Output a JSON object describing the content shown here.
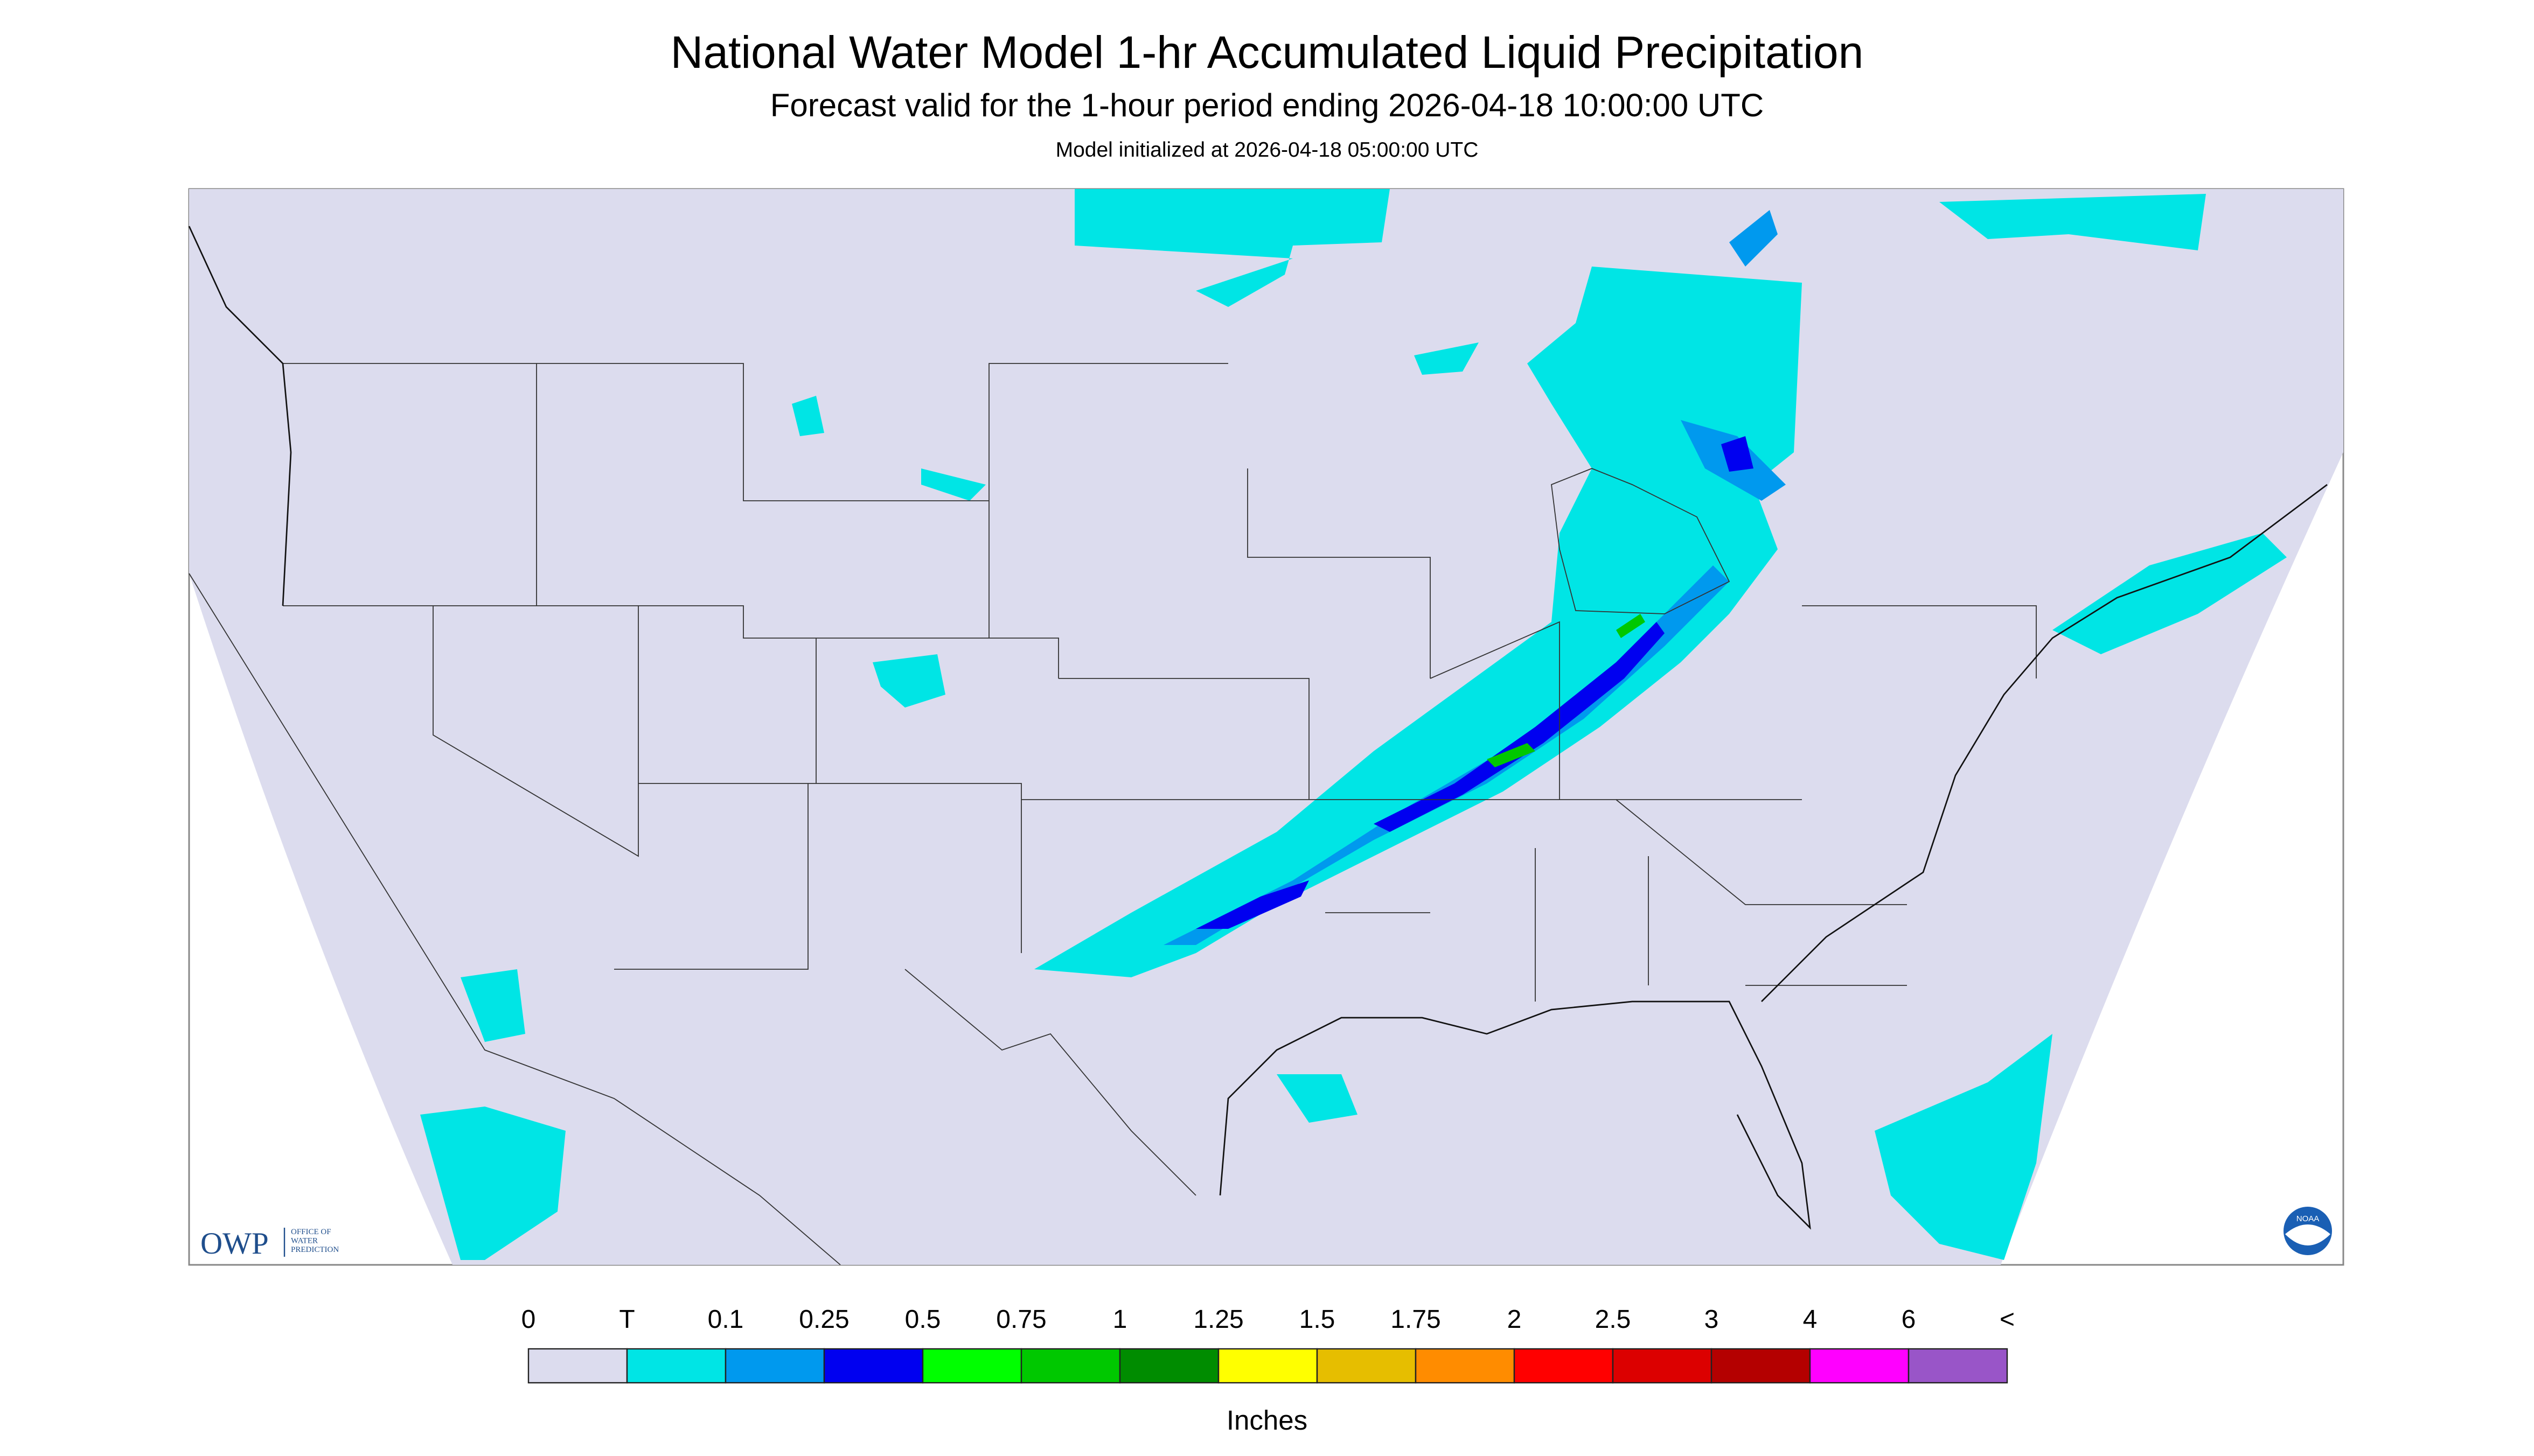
{
  "header": {
    "title": "National Water Model 1-hr Accumulated Liquid Precipitation",
    "subtitle": "Forecast valid for the 1-hour period ending 2026-04-18 10:00:00 UTC",
    "initialized": "Model initialized at 2026-04-18 05:00:00 UTC"
  },
  "legend": {
    "labels": [
      "0",
      "T",
      "0.1",
      "0.25",
      "0.5",
      "0.75",
      "1",
      "1.25",
      "1.5",
      "1.75",
      "2",
      "2.5",
      "3",
      "4",
      "6",
      "<"
    ],
    "colors": [
      "#dcdcee",
      "#00e5e5",
      "#0099ee",
      "#0000f0",
      "#00ff00",
      "#00c800",
      "#008c00",
      "#ffff00",
      "#e6be00",
      "#ff8c00",
      "#ff0000",
      "#dc0000",
      "#b40000",
      "#ff00ff",
      "#9955c8"
    ],
    "unit": "Inches"
  },
  "logos": {
    "owp": "OWP",
    "owp_lines": [
      "OFFICE OF",
      "WATER",
      "PREDICTION"
    ],
    "noaa": "NOAA"
  }
}
